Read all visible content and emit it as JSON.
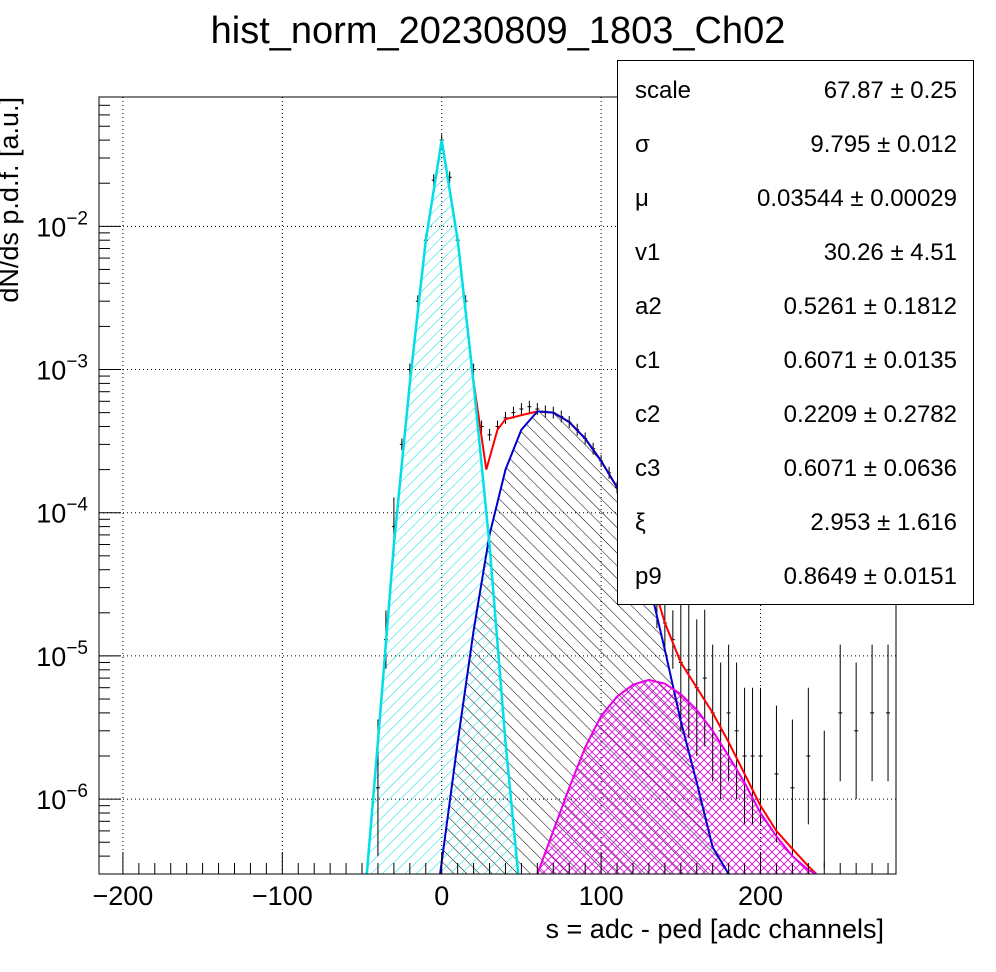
{
  "title": "hist_norm_20230809_1803_Ch02",
  "colors": {
    "data": "#000000",
    "total_fit": "#ff0000",
    "pedestal": "#00e0e8",
    "single_pe": "#0000cc",
    "double_pe": "#e600e6"
  },
  "stats": [
    {
      "name": "scale",
      "value": "67.87 ± 0.25"
    },
    {
      "name": "σ",
      "value": "9.795 ± 0.012"
    },
    {
      "name": "μ",
      "value": "0.03544 ± 0.00029"
    },
    {
      "name": "v1",
      "value": "30.26 ± 4.51"
    },
    {
      "name": "a2",
      "value": "0.5261 ± 0.1812"
    },
    {
      "name": "c1",
      "value": "0.6071 ± 0.0135"
    },
    {
      "name": "c2",
      "value": "0.2209 ± 0.2782"
    },
    {
      "name": "c3",
      "value": "0.6071 ± 0.0636"
    },
    {
      "name": "ξ",
      "value": "2.953 ± 1.616"
    },
    {
      "name": "p9",
      "value": "0.8649 ± 0.0151"
    }
  ],
  "chart_data": {
    "type": "line",
    "title": "hist_norm_20230809_1803_Ch02",
    "xlabel": "s = adc - ped [adc channels]",
    "ylabel": "dN/ds p.d.f. [a.u.]",
    "xlim": [
      -215,
      285
    ],
    "ylim": [
      3e-07,
      0.08
    ],
    "yscale": "log",
    "grid": true,
    "xticks": [
      -200,
      -100,
      0,
      100,
      200
    ],
    "xtick_labels": [
      "−200",
      "−100",
      "0",
      "100",
      "200"
    ],
    "yticks": [
      1e-06,
      1e-05,
      0.0001,
      0.001,
      0.01
    ],
    "ytick_labels": [
      {
        "base": "10",
        "exp": "−6"
      },
      {
        "base": "10",
        "exp": "−5"
      },
      {
        "base": "10",
        "exp": "−4"
      },
      {
        "base": "10",
        "exp": "−3"
      },
      {
        "base": "10",
        "exp": "−2"
      }
    ],
    "series": [
      {
        "key": "pedestal",
        "x": [
          -47,
          -40,
          -30,
          -20,
          -10,
          0,
          10,
          20,
          30,
          40,
          48
        ],
        "y": [
          3e-07,
          2.5e-06,
          6e-05,
          0.0008,
          0.008,
          0.04,
          0.008,
          0.0008,
          6e-05,
          2.5e-06,
          3e-07
        ]
      },
      {
        "key": "single_pe",
        "x": [
          -1,
          10,
          20,
          30,
          40,
          50,
          60,
          70,
          80,
          90,
          100,
          110,
          120,
          130,
          140,
          150,
          160,
          170,
          180
        ],
        "y": [
          3e-07,
          2.5e-06,
          1.5e-05,
          7e-05,
          0.0002,
          0.00038,
          0.00051,
          0.0005,
          0.00043,
          0.00033,
          0.00023,
          0.00015,
          7.6e-05,
          3.3e-05,
          1.1e-05,
          3.5e-06,
          1.3e-06,
          4.6e-07,
          3e-07
        ]
      },
      {
        "key": "double_pe",
        "x": [
          60,
          70,
          80,
          90,
          100,
          110,
          120,
          130,
          140,
          150,
          160,
          170,
          180,
          190,
          200,
          210,
          220,
          230,
          235
        ],
        "y": [
          3e-07,
          6e-07,
          1.2e-06,
          2.3e-06,
          3.8e-06,
          5.2e-06,
          6.3e-06,
          6.8e-06,
          6.4e-06,
          5.4e-06,
          4.2e-06,
          3e-06,
          2e-06,
          1.3e-06,
          8e-07,
          5.5e-07,
          4e-07,
          3.2e-07,
          3e-07
        ]
      },
      {
        "key": "total_fit",
        "x": [
          -47,
          -40,
          -30,
          -20,
          -10,
          0,
          10,
          20,
          28,
          35,
          40,
          50,
          60,
          70,
          80,
          90,
          100,
          110,
          120,
          130,
          140,
          150,
          160,
          170,
          180,
          190,
          200,
          210,
          220,
          230,
          235
        ],
        "y": [
          3e-07,
          2.5e-06,
          6e-05,
          0.0008,
          0.008,
          0.04,
          0.008,
          0.00082,
          0.0002,
          0.00038,
          0.00045,
          0.00048,
          0.00051,
          0.0005,
          0.00043,
          0.00033,
          0.00023,
          0.00015,
          8e-05,
          4e-05,
          1.7e-05,
          9e-06,
          6e-06,
          4e-06,
          2.5e-06,
          1.5e-06,
          9e-07,
          6e-07,
          4.5e-07,
          3.4e-07,
          3e-07
        ]
      },
      {
        "key": "data",
        "x": [
          -45,
          -40,
          -35,
          -30,
          -25,
          -20,
          -15,
          -10,
          -5,
          0,
          5,
          10,
          15,
          20,
          25,
          30,
          35,
          40,
          45,
          50,
          55,
          60,
          65,
          70,
          75,
          80,
          85,
          90,
          95,
          100,
          105,
          110,
          115,
          120,
          125,
          130,
          135,
          140,
          145,
          150,
          155,
          160,
          165,
          170,
          175,
          180,
          185,
          190,
          195,
          200,
          210,
          220,
          230,
          240,
          250,
          260,
          270,
          280
        ],
        "y": [
          null,
          1.2e-06,
          1.3e-05,
          8e-05,
          0.0003,
          0.001,
          0.003,
          0.008,
          0.021,
          0.04,
          0.022,
          0.008,
          0.003,
          0.001,
          0.0004,
          0.00035,
          0.0004,
          0.00046,
          0.0005,
          0.00053,
          0.00055,
          0.00053,
          0.00051,
          0.0005,
          0.00047,
          0.00043,
          0.00038,
          0.00033,
          0.00028,
          0.00023,
          0.00019,
          0.00015,
          0.00012,
          8e-05,
          6e-05,
          4e-05,
          2.5e-05,
          1.7e-05,
          1.3e-05,
          9e-06,
          8e-06,
          6e-06,
          7e-06,
          4e-06,
          3e-06,
          4e-06,
          3e-06,
          2e-06,
          2e-06,
          2e-06,
          1.5e-06,
          1.2e-06,
          2e-06,
          1e-06,
          4e-06,
          3e-06,
          4e-06,
          4e-06
        ]
      }
    ]
  }
}
